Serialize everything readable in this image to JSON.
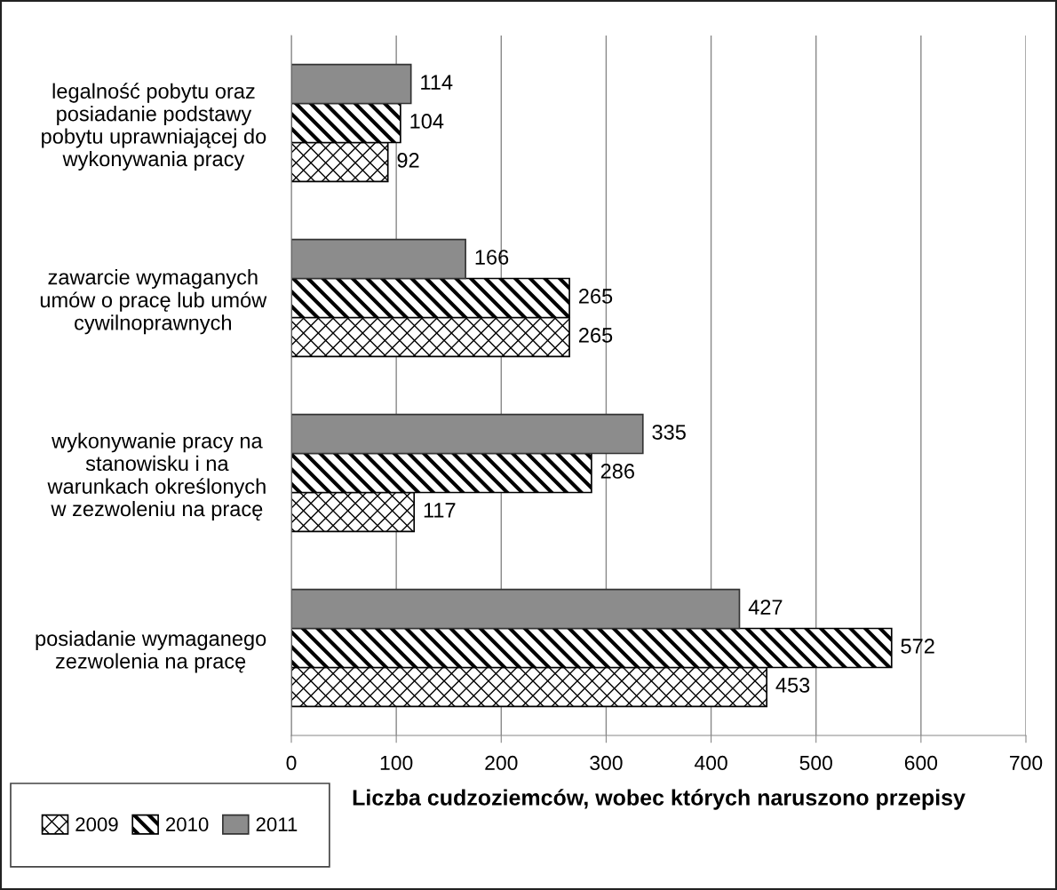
{
  "chart_data": {
    "type": "bar",
    "orientation": "horizontal",
    "categories": [
      "legalność pobytu oraz\nposiadanie podstawy\npobytu uprawniającej do\nwykonywania pracy",
      "zawarcie wymaganych\numów o pracę lub umów\ncywilnoprawnych",
      "wykonywanie pracy na\nstanowisku i na\nwarunkach określonych\nw zezwoleniu na pracę",
      "posiadanie wymaganego\nzezwolenia na pracę"
    ],
    "series": [
      {
        "name": "2009",
        "color": "#000000",
        "values": [
          92,
          265,
          117,
          453
        ]
      },
      {
        "name": "2010",
        "color": "#000000",
        "values": [
          104,
          265,
          286,
          572
        ]
      },
      {
        "name": "2011",
        "color": "#8c8c8c",
        "values": [
          114,
          166,
          335,
          427
        ]
      }
    ],
    "xlabel": "Liczba cudzoziemców, wobec których naruszono przepisy",
    "xlim": [
      0,
      700
    ],
    "xticks": [
      0,
      100,
      200,
      300,
      400,
      500,
      600,
      700
    ],
    "grid": "x",
    "legend": "bottom left",
    "data_labels": true
  }
}
